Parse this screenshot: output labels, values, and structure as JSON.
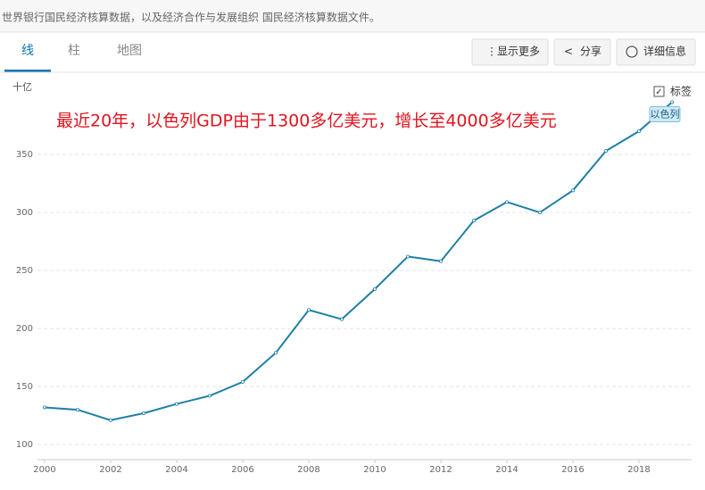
{
  "header": "世界银行国民经济核算数据，以及经济合作与发展组织 国民经济核算数据文件。",
  "tabs": [
    "线",
    "柱",
    "地图"
  ],
  "buttons": [
    "显示更多",
    "分享",
    "详细信息"
  ],
  "legend_toggle": "标签",
  "chart_data": {
    "type": "line",
    "y_label": "十亿",
    "annotation": "最近20年，以色列GDP由于1300多亿美元，增长至4000多亿美元",
    "x": [
      2000,
      2001,
      2002,
      2003,
      2004,
      2005,
      2006,
      2007,
      2008,
      2009,
      2010,
      2011,
      2012,
      2013,
      2014,
      2015,
      2016,
      2017,
      2018,
      2019
    ],
    "series": [
      {
        "name": "以色列",
        "color": "#1f7fa6",
        "values": [
          132,
          130,
          121,
          127,
          135,
          142,
          154,
          179,
          216,
          208,
          234,
          262,
          258,
          293,
          309,
          300,
          319,
          353,
          370,
          395
        ]
      }
    ],
    "xlim": [
      2000,
      2019
    ],
    "xticks": [
      2000,
      2002,
      2004,
      2006,
      2008,
      2010,
      2012,
      2014,
      2016,
      2018
    ],
    "ylim": [
      87,
      400
    ],
    "yticks": [
      100,
      150,
      200,
      250,
      300,
      350
    ],
    "grid": true
  }
}
